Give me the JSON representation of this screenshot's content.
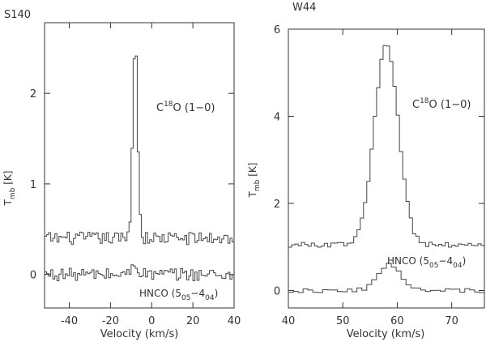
{
  "chart_data": [
    {
      "type": "line",
      "title": "S140",
      "xlabel": "Velocity (km/s)",
      "ylabel": "T_mb [K]",
      "xlim": [
        -52,
        40
      ],
      "ylim": [
        -0.37,
        2.78
      ],
      "xticks": [
        -40,
        -20,
        0,
        20,
        40
      ],
      "yticks": [
        0,
        1,
        2
      ],
      "grid": false,
      "series": [
        {
          "name": "C18O (1-0)",
          "label_parts": {
            "species": "C",
            "sup": "18",
            "rest": "O (1−0)"
          },
          "offset": 0.4,
          "step": 1.0,
          "x_start": -52,
          "x_end": 40,
          "center": -8,
          "sigma": 1.2,
          "peak": 2.18,
          "noise": 0.07
        },
        {
          "name": "HNCO (5_05-4_04)",
          "label_parts": {
            "species": "HNCO (5",
            "sub1": "05",
            "dash": "−4",
            "sub2": "04",
            "end": ")"
          },
          "offset": 0.0,
          "step": 1.0,
          "x_start": -52,
          "x_end": 40,
          "center": -8,
          "sigma": 1.5,
          "peak": 0.12,
          "noise": 0.07
        }
      ]
    },
    {
      "type": "line",
      "title": "W44",
      "xlabel": "Velocity (km/s)",
      "ylabel": "T_mb [K]",
      "xlim": [
        40,
        76
      ],
      "ylim": [
        -0.4,
        6.0
      ],
      "xticks": [
        40,
        50,
        60,
        70
      ],
      "yticks": [
        0,
        2,
        4,
        6
      ],
      "grid": false,
      "series": [
        {
          "name": "C18O (1-0)",
          "label_parts": {
            "species": "C",
            "sup": "18",
            "rest": "O (1−0)"
          },
          "offset": 1.05,
          "step": 0.6,
          "x_start": 40,
          "x_end": 76,
          "center": 58,
          "sigma": 2.2,
          "peak": 4.6,
          "noise": 0.06
        },
        {
          "name": "HNCO (5_05-4_04)",
          "label_parts": {
            "species": "HNCO (5",
            "sub1": "05",
            "dash": "−4",
            "sub2": "04",
            "end": ")"
          },
          "offset": 0.0,
          "step": 0.9,
          "x_start": 40,
          "x_end": 76,
          "center": 58.5,
          "sigma": 2.0,
          "peak": 0.6,
          "noise": 0.05
        }
      ]
    }
  ]
}
